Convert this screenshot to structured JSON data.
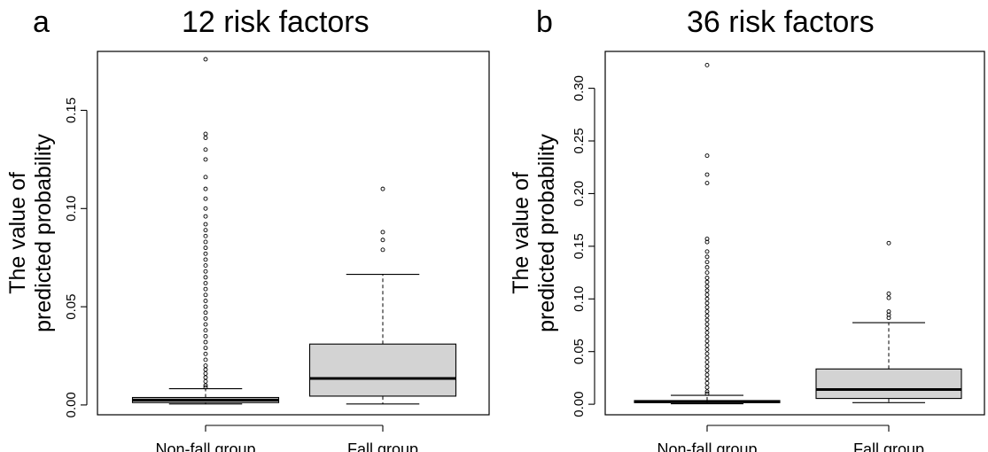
{
  "chart_data": [
    {
      "panel_letter": "a",
      "type": "box",
      "title": "12 risk factors",
      "ylabel": "The value of\npredicted probability",
      "xlabel": "",
      "ylim": [
        -0.005,
        0.18
      ],
      "yticks": [
        0.0,
        0.05,
        0.1,
        0.15
      ],
      "ytick_labels": [
        "0.00",
        "0.05",
        "0.10",
        "0.15"
      ],
      "grid": false,
      "categories": [
        "Non-fall group",
        "Fall group"
      ],
      "boxes": [
        {
          "category": "Non-fall group",
          "whisker_low": 0.0005,
          "q1": 0.0012,
          "median": 0.0025,
          "q3": 0.0038,
          "whisker_high": 0.0083,
          "outliers": [
            0.176,
            0.138,
            0.136,
            0.13,
            0.125,
            0.116,
            0.11,
            0.105,
            0.1,
            0.096,
            0.092,
            0.089,
            0.086,
            0.083,
            0.08,
            0.077,
            0.074,
            0.071,
            0.068,
            0.065,
            0.062,
            0.059,
            0.056,
            0.053,
            0.05,
            0.047,
            0.044,
            0.041,
            0.038,
            0.035,
            0.032,
            0.029,
            0.026,
            0.023,
            0.02,
            0.018,
            0.016,
            0.014,
            0.012,
            0.01,
            0.009
          ]
        },
        {
          "category": "Fall group",
          "whisker_low": 0.0005,
          "q1": 0.0045,
          "median": 0.0135,
          "q3": 0.031,
          "whisker_high": 0.0665,
          "outliers": [
            0.11,
            0.088,
            0.084,
            0.079
          ]
        }
      ]
    },
    {
      "panel_letter": "b",
      "type": "box",
      "title": "36 risk factors",
      "ylabel": "The value of\npredicted probability",
      "xlabel": "",
      "ylim": [
        -0.01,
        0.335
      ],
      "yticks": [
        0.0,
        0.05,
        0.1,
        0.15,
        0.2,
        0.25,
        0.3
      ],
      "ytick_labels": [
        "0.00",
        "0.05",
        "0.10",
        "0.15",
        "0.20",
        "0.25",
        "0.30"
      ],
      "grid": false,
      "categories": [
        "Non-fall group",
        "Fall group"
      ],
      "boxes": [
        {
          "category": "Non-fall group",
          "whisker_low": 0.0005,
          "q1": 0.0015,
          "median": 0.0025,
          "q3": 0.0035,
          "whisker_high": 0.0085,
          "outliers": [
            0.322,
            0.236,
            0.218,
            0.21,
            0.157,
            0.154,
            0.145,
            0.14,
            0.135,
            0.13,
            0.125,
            0.12,
            0.116,
            0.112,
            0.108,
            0.104,
            0.1,
            0.096,
            0.092,
            0.088,
            0.084,
            0.08,
            0.076,
            0.072,
            0.068,
            0.064,
            0.06,
            0.056,
            0.052,
            0.048,
            0.044,
            0.04,
            0.036,
            0.032,
            0.028,
            0.024,
            0.02,
            0.016,
            0.012,
            0.01
          ]
        },
        {
          "category": "Fall group",
          "whisker_low": 0.0015,
          "q1": 0.0055,
          "median": 0.014,
          "q3": 0.0335,
          "whisker_high": 0.0775,
          "outliers": [
            0.153,
            0.105,
            0.101,
            0.088,
            0.085,
            0.082
          ]
        }
      ]
    }
  ]
}
